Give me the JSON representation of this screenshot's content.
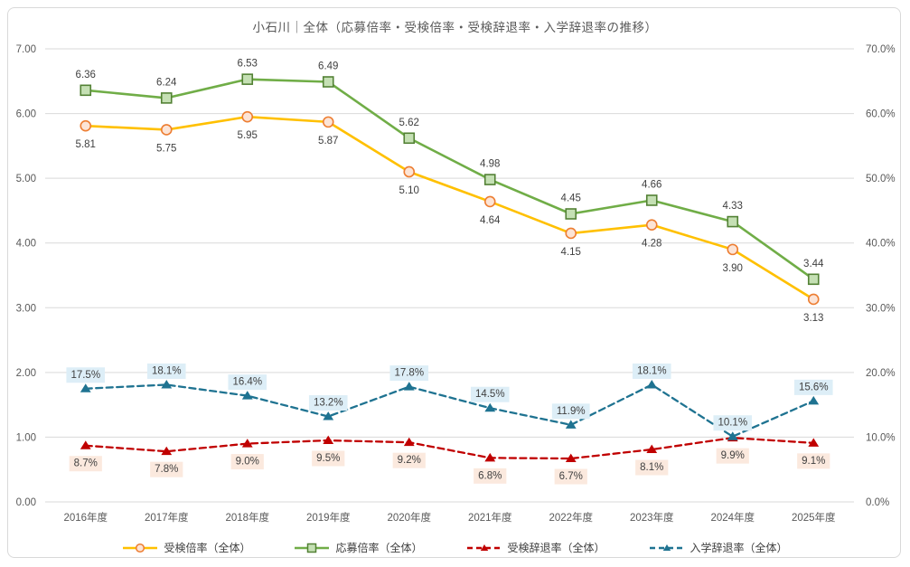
{
  "chart": {
    "title": "小石川｜全体（応募倍率・受検倍率・受検辞退率・入学辞退率の推移）"
  },
  "chart_data": {
    "type": "line",
    "title": "小石川｜全体（応募倍率・受検倍率・受検辞退率・入学辞退率の推移）",
    "categories": [
      "2016年度",
      "2017年度",
      "2018年度",
      "2019年度",
      "2020年度",
      "2021年度",
      "2022年度",
      "2023年度",
      "2024年度",
      "2025年度"
    ],
    "grid": "horizontal",
    "legend_position": "bottom",
    "left_axis": {
      "min": 0,
      "max": 7,
      "ticks": [
        "0.00",
        "1.00",
        "2.00",
        "3.00",
        "4.00",
        "5.00",
        "6.00",
        "7.00"
      ]
    },
    "right_axis": {
      "min": 0,
      "max": 70,
      "ticks": [
        "0.0%",
        "10.0%",
        "20.0%",
        "30.0%",
        "40.0%",
        "50.0%",
        "60.0%",
        "70.0%"
      ]
    },
    "colors": {
      "grid": "#d9d9d9",
      "axis_text": "#595959",
      "data_label_text": "#404040"
    },
    "series": [
      {
        "name": "受検倍率（全体）",
        "axis": "left",
        "values": [
          5.81,
          5.75,
          5.95,
          5.87,
          5.1,
          4.64,
          4.15,
          4.28,
          3.9,
          3.13
        ],
        "color": "#FFC000",
        "dash": false,
        "marker": "circle",
        "marker_fill": "#FCE4D6",
        "marker_stroke": "#ED7D31",
        "label_position": "below",
        "label_bg": null,
        "label_format": "2dp"
      },
      {
        "name": "応募倍率（全体）",
        "axis": "left",
        "values": [
          6.36,
          6.24,
          6.53,
          6.49,
          5.62,
          4.98,
          4.45,
          4.66,
          4.33,
          3.44
        ],
        "color": "#70AD47",
        "dash": false,
        "marker": "square",
        "marker_fill": "#C5E0B4",
        "marker_stroke": "#538135",
        "label_position": "above",
        "label_bg": null,
        "label_format": "2dp"
      },
      {
        "name": "受検辞退率（全体）",
        "axis": "right",
        "values": [
          8.7,
          7.8,
          9.0,
          9.5,
          9.2,
          6.8,
          6.7,
          8.1,
          9.9,
          9.1
        ],
        "color": "#C00000",
        "dash": true,
        "marker": "triangle",
        "marker_fill": "#C00000",
        "marker_stroke": "#C00000",
        "label_position": "below",
        "label_bg": "#FBE9DE",
        "label_format": "pct1"
      },
      {
        "name": "入学辞退率（全体）",
        "axis": "right",
        "values": [
          17.5,
          18.1,
          16.4,
          13.2,
          17.8,
          14.5,
          11.9,
          18.1,
          10.1,
          15.6
        ],
        "color": "#1F7391",
        "dash": true,
        "marker": "triangle",
        "marker_fill": "#1F7391",
        "marker_stroke": "#1F7391",
        "label_position": "above",
        "label_bg": "#DDEEF7",
        "label_format": "pct1"
      }
    ]
  }
}
